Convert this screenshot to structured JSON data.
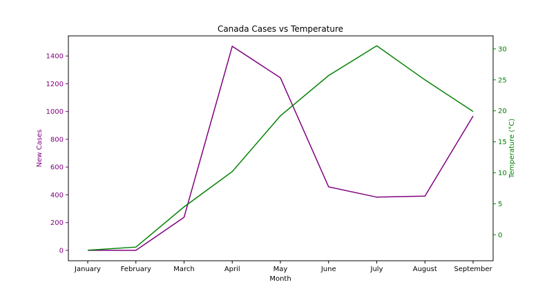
{
  "chart_data": {
    "type": "line",
    "title": "Canada Cases vs Temperature",
    "xlabel": "Month",
    "categories": [
      "January",
      "February",
      "March",
      "April",
      "May",
      "June",
      "July",
      "August",
      "September"
    ],
    "left_axis": {
      "label": "New Cases",
      "color": "#800080",
      "ylim": [
        -75,
        1545
      ],
      "ticks": [
        0,
        200,
        400,
        600,
        800,
        1000,
        1200,
        1400
      ]
    },
    "right_axis": {
      "label": "Temperature (°C)",
      "color": "#008000",
      "ylim": [
        -4.2,
        32.1
      ],
      "ticks": [
        0,
        5,
        10,
        15,
        20,
        25,
        30
      ]
    },
    "series": [
      {
        "axis": "left",
        "color": "#800080",
        "values": [
          0,
          0,
          238,
          1470,
          1243,
          457,
          383,
          391,
          967
        ]
      },
      {
        "axis": "right",
        "color": "#008000",
        "values": [
          -2.5,
          -2.0,
          4.5,
          10.2,
          19.2,
          25.7,
          30.5,
          25.0,
          19.9
        ]
      }
    ],
    "grid": false
  }
}
